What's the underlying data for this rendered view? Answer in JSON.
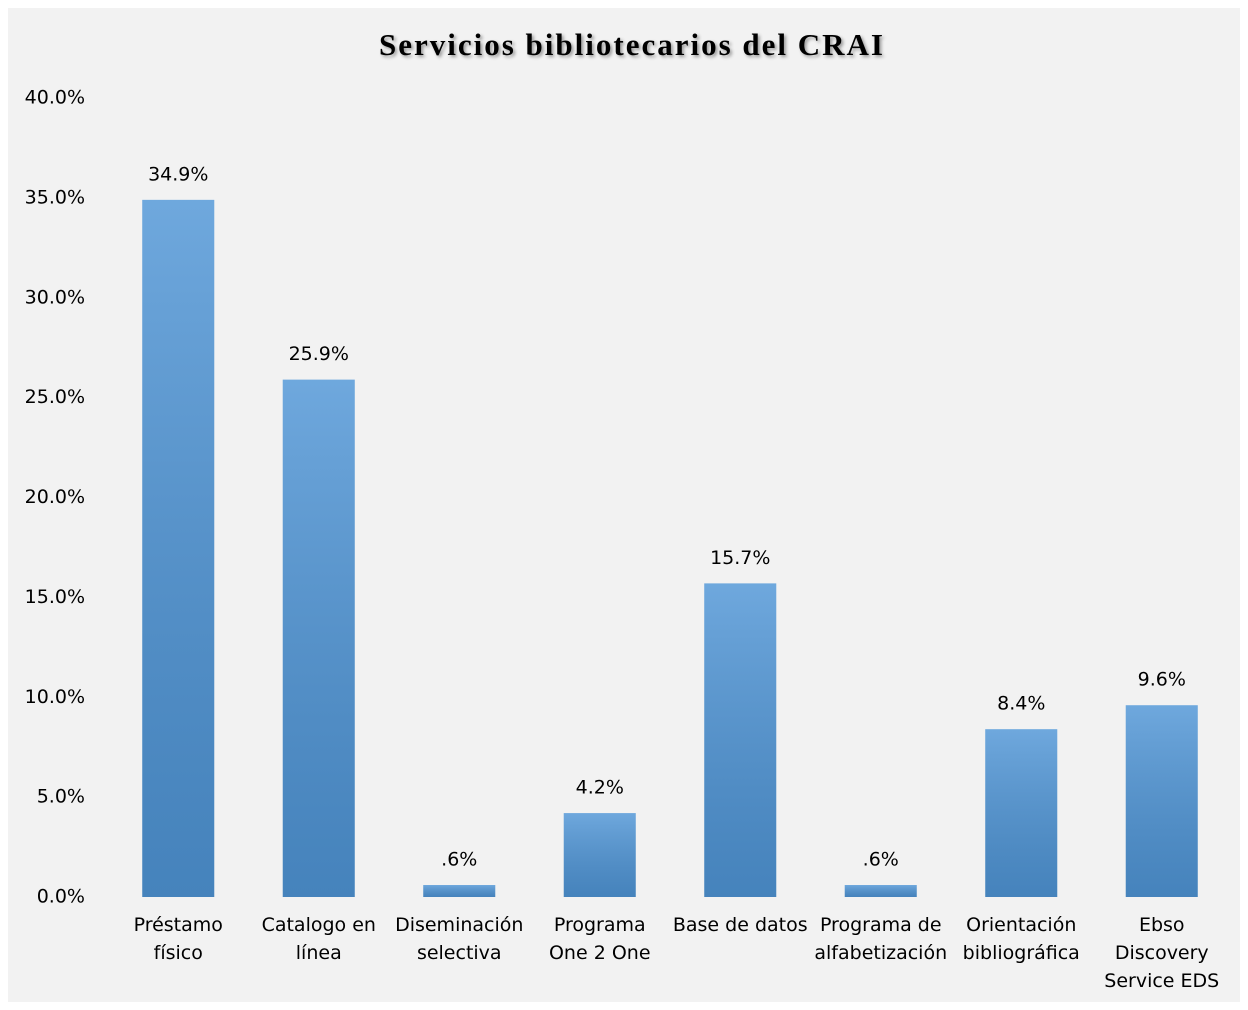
{
  "chart_data": {
    "type": "bar",
    "title": "Servicios bibliotecarios del CRAI",
    "categories": [
      "Préstamo\nfísico",
      "Catalogo en\nlínea",
      "Diseminación\nselectiva",
      "Programa\nOne 2 One",
      "Base de datos",
      "Programa de\nalfabetización",
      "Orientación\nbibliográfica",
      "Ebso\nDiscovery\nService EDS"
    ],
    "values": [
      34.9,
      25.9,
      0.6,
      4.2,
      15.7,
      0.6,
      8.4,
      9.6
    ],
    "value_labels": [
      "34.9%",
      "25.9%",
      ".6%",
      "4.2%",
      "15.7%",
      ".6%",
      "8.4%",
      "9.6%"
    ],
    "color": "#4f95d6",
    "ylim": [
      0,
      40
    ],
    "yticks": [
      {
        "value": 0,
        "label": "0.0%"
      },
      {
        "value": 5,
        "label": "5.0%"
      },
      {
        "value": 10,
        "label": "10.0%"
      },
      {
        "value": 15,
        "label": "15.0%"
      },
      {
        "value": 20,
        "label": "20.0%"
      },
      {
        "value": 25,
        "label": "25.0%"
      },
      {
        "value": 30,
        "label": "30.0%"
      },
      {
        "value": 35,
        "label": "35.0%"
      },
      {
        "value": 40,
        "label": "40.0%"
      }
    ],
    "grid": false
  }
}
